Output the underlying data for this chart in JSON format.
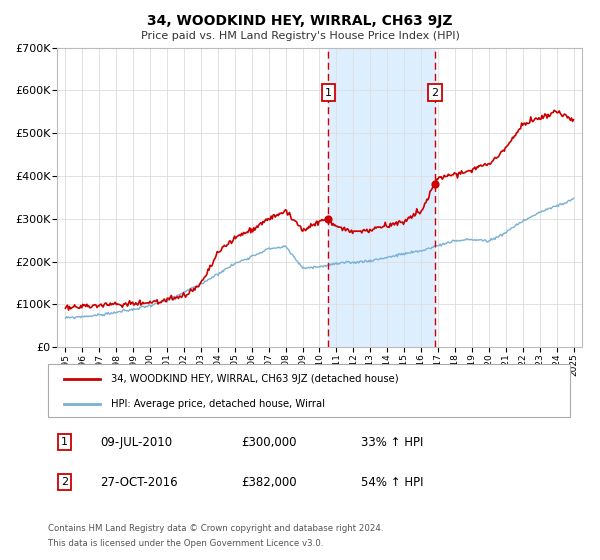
{
  "title": "34, WOODKIND HEY, WIRRAL, CH63 9JZ",
  "subtitle": "Price paid vs. HM Land Registry's House Price Index (HPI)",
  "xlim": [
    1994.5,
    2025.5
  ],
  "ylim": [
    0,
    700000
  ],
  "yticks": [
    0,
    100000,
    200000,
    300000,
    400000,
    500000,
    600000,
    700000
  ],
  "ytick_labels": [
    "£0",
    "£100K",
    "£200K",
    "£300K",
    "£400K",
    "£500K",
    "£600K",
    "£700K"
  ],
  "xticks": [
    1995,
    1996,
    1997,
    1998,
    1999,
    2000,
    2001,
    2002,
    2003,
    2004,
    2005,
    2006,
    2007,
    2008,
    2009,
    2010,
    2011,
    2012,
    2013,
    2014,
    2015,
    2016,
    2017,
    2018,
    2019,
    2020,
    2021,
    2022,
    2023,
    2024,
    2025
  ],
  "sale_color": "#cc0000",
  "hpi_color": "#7ab0d4",
  "shaded_color": "#ddeeff",
  "vline_color": "#cc0000",
  "marker1_date": 2010.52,
  "marker1_price": 300000,
  "marker2_date": 2016.82,
  "marker2_price": 382000,
  "legend_label1": "34, WOODKIND HEY, WIRRAL, CH63 9JZ (detached house)",
  "legend_label2": "HPI: Average price, detached house, Wirral",
  "table_row1": [
    "1",
    "09-JUL-2010",
    "£300,000",
    "33% ↑ HPI"
  ],
  "table_row2": [
    "2",
    "27-OCT-2016",
    "£382,000",
    "54% ↑ HPI"
  ],
  "footer_line1": "Contains HM Land Registry data © Crown copyright and database right 2024.",
  "footer_line2": "This data is licensed under the Open Government Licence v3.0.",
  "hpi_anchors_x": [
    1995,
    1997,
    1999,
    2001,
    2003,
    2005,
    2007,
    2008,
    2009,
    2010,
    2011,
    2012,
    2013,
    2014,
    2015,
    2016,
    2017,
    2018,
    2019,
    2020,
    2021,
    2022,
    2023,
    2024,
    2025
  ],
  "hpi_anchors_y": [
    68000,
    75000,
    88000,
    108000,
    148000,
    195000,
    230000,
    235000,
    185000,
    188000,
    195000,
    198000,
    202000,
    210000,
    218000,
    225000,
    238000,
    248000,
    252000,
    248000,
    268000,
    295000,
    315000,
    330000,
    345000
  ],
  "sale_anchors_x": [
    1995,
    1996,
    1997,
    1998,
    1999,
    2000,
    2001,
    2002,
    2003,
    2004,
    2005,
    2006,
    2007,
    2008,
    2009,
    2010,
    2010.52,
    2011,
    2012,
    2013,
    2014,
    2015,
    2016,
    2016.82,
    2017,
    2018,
    2019,
    2020,
    2021,
    2022,
    2023,
    2024,
    2025
  ],
  "sale_anchors_y": [
    92000,
    95000,
    98000,
    100000,
    102000,
    105000,
    110000,
    118000,
    148000,
    220000,
    255000,
    275000,
    300000,
    320000,
    270000,
    295000,
    300000,
    280000,
    268000,
    275000,
    283000,
    295000,
    318000,
    382000,
    395000,
    405000,
    415000,
    428000,
    465000,
    520000,
    535000,
    548000,
    532000
  ],
  "noise_seed": 99
}
